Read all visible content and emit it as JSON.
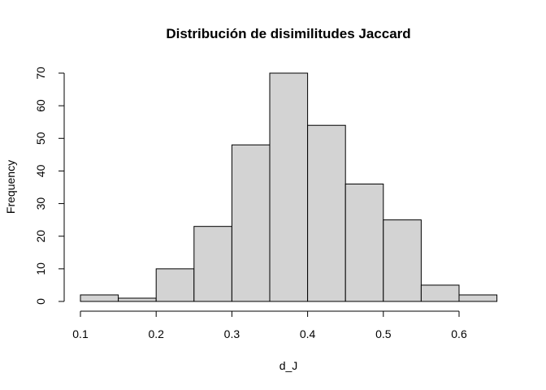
{
  "chart_data": {
    "type": "bar",
    "title": "Distribución de disimilitudes Jaccard",
    "xlabel": "d_J",
    "ylabel": "Frequency",
    "bins": [
      {
        "start": 0.1,
        "end": 0.15,
        "count": 2
      },
      {
        "start": 0.15,
        "end": 0.2,
        "count": 1
      },
      {
        "start": 0.2,
        "end": 0.25,
        "count": 10
      },
      {
        "start": 0.25,
        "end": 0.3,
        "count": 23
      },
      {
        "start": 0.3,
        "end": 0.35,
        "count": 48
      },
      {
        "start": 0.35,
        "end": 0.4,
        "count": 70
      },
      {
        "start": 0.4,
        "end": 0.45,
        "count": 54
      },
      {
        "start": 0.45,
        "end": 0.5,
        "count": 36
      },
      {
        "start": 0.5,
        "end": 0.55,
        "count": 25
      },
      {
        "start": 0.55,
        "end": 0.6,
        "count": 5
      },
      {
        "start": 0.6,
        "end": 0.65,
        "count": 2
      }
    ],
    "xlim": [
      0.1,
      0.65
    ],
    "ylim": [
      0,
      70
    ],
    "x_ticks": [
      0.1,
      0.2,
      0.3,
      0.4,
      0.5,
      0.6
    ],
    "x_tick_labels": [
      "0.1",
      "0.2",
      "0.3",
      "0.4",
      "0.5",
      "0.6"
    ],
    "y_ticks": [
      0,
      10,
      20,
      30,
      40,
      50,
      60,
      70
    ],
    "y_tick_labels": [
      "0",
      "10",
      "20",
      "30",
      "40",
      "50",
      "60",
      "70"
    ],
    "grid": false,
    "legend": "none",
    "bar_color": "#d3d3d3",
    "edge_color": "#000000"
  }
}
